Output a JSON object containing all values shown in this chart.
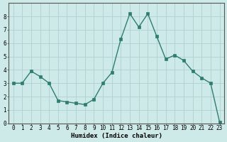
{
  "x": [
    0,
    1,
    2,
    3,
    4,
    5,
    6,
    7,
    8,
    9,
    10,
    11,
    12,
    13,
    14,
    15,
    16,
    17,
    18,
    19,
    20,
    21,
    22,
    23
  ],
  "y": [
    3.0,
    3.0,
    3.9,
    3.5,
    3.0,
    1.7,
    1.6,
    1.5,
    1.4,
    1.8,
    3.0,
    3.8,
    6.3,
    8.2,
    7.2,
    8.2,
    6.5,
    4.8,
    5.1,
    4.7,
    3.9,
    3.4,
    3.0,
    0.1
  ],
  "line_color": "#2e7d6e",
  "marker_color": "#2e7d6e",
  "bg_color": "#ceeae8",
  "grid_color": "#aed0ce",
  "xlabel": "Humidex (Indice chaleur)",
  "xlim": [
    -0.5,
    23.5
  ],
  "ylim": [
    0,
    9
  ],
  "xtick_labels": [
    "0",
    "1",
    "2",
    "3",
    "4",
    "5",
    "6",
    "7",
    "8",
    "9",
    "10",
    "11",
    "12",
    "13",
    "14",
    "15",
    "16",
    "17",
    "18",
    "19",
    "20",
    "21",
    "22",
    "23"
  ],
  "ytick_values": [
    0,
    1,
    2,
    3,
    4,
    5,
    6,
    7,
    8
  ],
  "axis_fontsize": 6.5,
  "tick_fontsize": 5.5,
  "linewidth": 1.0,
  "markersize": 2.2
}
